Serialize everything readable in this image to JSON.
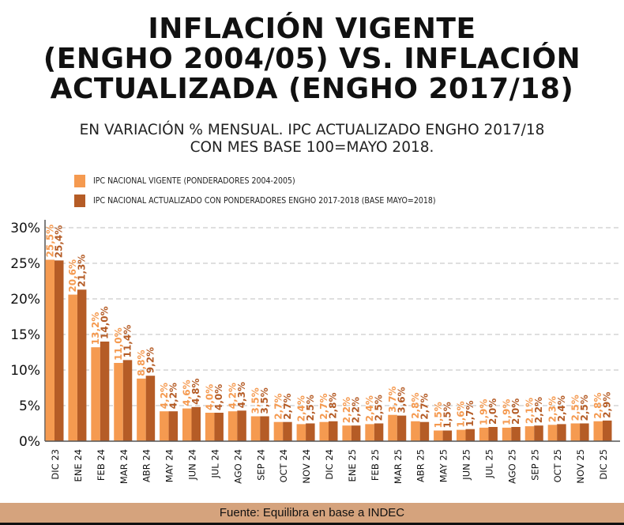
{
  "title_lines": [
    "INFLACIÓN VIGENTE",
    "(ENGHO 2004/05) VS. INFLACIÓN",
    "ACTUALIZADA (ENGHO 2017/18)"
  ],
  "subtitle_lines": [
    "EN VARIACIÓN % MENSUAL. IPC ACTUALIZADO ENGHO 2017/18",
    "CON MES BASE 100=MAYO 2018."
  ],
  "footer": "Fuente:  Equilibra en base a INDEC",
  "colors": {
    "vigente": "#f59a50",
    "actualizado": "#b55c26",
    "grid": "#cccccc",
    "axis": "#555555"
  },
  "chart_data": {
    "type": "bar",
    "title": "INFLACIÓN VIGENTE (ENGHO 2004/05) VS. INFLACIÓN ACTUALIZADA (ENGHO 2017/18)",
    "subtitle": "EN VARIACIÓN % MENSUAL. IPC ACTUALIZADO ENGHO 2017/18 CON MES BASE 100=MAYO 2018.",
    "xlabel": "",
    "ylabel": "",
    "ylim": [
      0,
      30
    ],
    "yticks": [
      0,
      5,
      10,
      15,
      20,
      25,
      30
    ],
    "ytick_labels": [
      "0%",
      "5%",
      "10%",
      "15%",
      "20%",
      "25%",
      "30%"
    ],
    "grid": true,
    "legend_position": "top-left",
    "categories": [
      "DIC 23",
      "ENE 24",
      "FEB 24",
      "MAR 24",
      "ABR 24",
      "MAY 24",
      "JUN 24",
      "JUL 24",
      "AGO 24",
      "SEP 24",
      "OCT 24",
      "NOV 24",
      "DIC 24",
      "ENE 25",
      "FEB 25",
      "MAR 25",
      "ABR 25",
      "MAY 25",
      "JUN 25",
      "JUL 25",
      "AGO 25",
      "SEP 25",
      "OCT 25",
      "NOV 25",
      "DIC 25"
    ],
    "series": [
      {
        "name": "IPC NACIONAL VIGENTE (PONDERADORES 2004-2005)",
        "values": [
          25.5,
          20.6,
          13.2,
          11.0,
          8.8,
          4.2,
          4.6,
          4.0,
          4.2,
          3.5,
          2.7,
          2.4,
          2.7,
          2.2,
          2.4,
          3.7,
          2.8,
          1.5,
          1.6,
          1.9,
          1.9,
          2.1,
          2.3,
          2.5,
          2.8
        ],
        "labels": [
          "25,5%",
          "20,6%",
          "13,2%",
          "11,0%",
          "8,8%",
          "4,2%",
          "4,6%",
          "4,0%",
          "4,2%",
          "3,5%",
          "2,7%",
          "2,4%",
          "2,7%",
          "2,2%",
          "2,4%",
          "3,7%",
          "2,8%",
          "1,5%",
          "1,6%",
          "1,9%",
          "1,9%",
          "2,1%",
          "2,3%",
          "2,5%",
          "2,8%"
        ]
      },
      {
        "name": "IPC NACIONAL ACTUALIZADO CON PONDERADORES ENGHO 2017-2018 (BASE MAYO=2018)",
        "values": [
          25.4,
          21.3,
          14.0,
          11.4,
          9.2,
          4.2,
          4.8,
          4.0,
          4.3,
          3.5,
          2.7,
          2.5,
          2.8,
          2.2,
          2.5,
          3.6,
          2.7,
          1.5,
          1.7,
          2.0,
          2.0,
          2.2,
          2.4,
          2.5,
          2.9
        ],
        "labels": [
          "25,4%",
          "21,3%",
          "14,0%",
          "11,4%",
          "9,2%",
          "4,2%",
          "4,8%",
          "4,0%",
          "4,3%",
          "3,5%",
          "2,7%",
          "2,5%",
          "2,8%",
          "2,2%",
          "2,5%",
          "3,6%",
          "2,7%",
          "1,5%",
          "1,7%",
          "2,0%",
          "2,0%",
          "2,2%",
          "2,4%",
          "2,5%",
          "2,9%"
        ]
      }
    ]
  }
}
